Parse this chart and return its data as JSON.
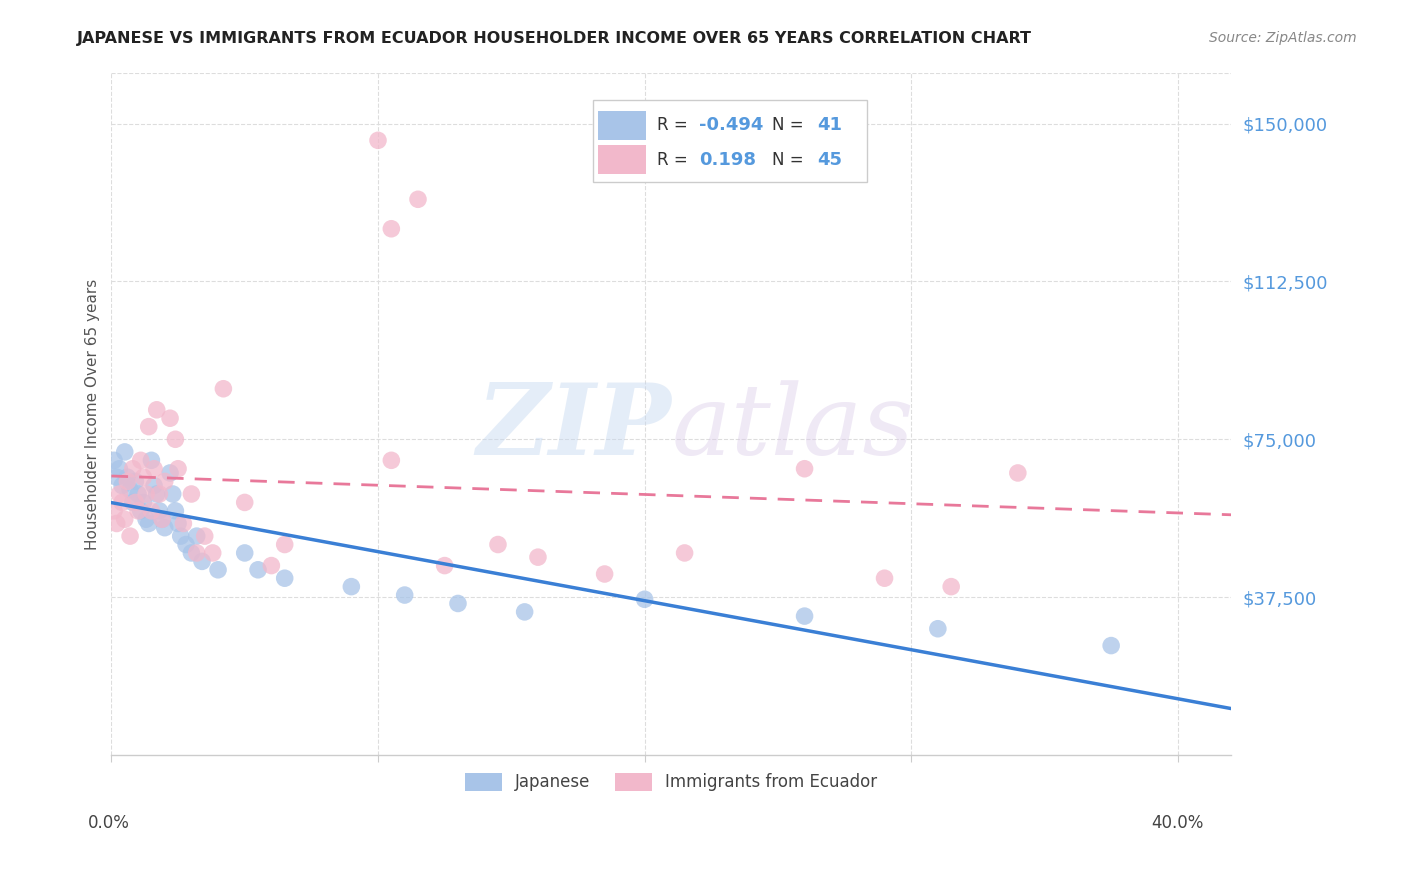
{
  "title": "JAPANESE VS IMMIGRANTS FROM ECUADOR HOUSEHOLDER INCOME OVER 65 YEARS CORRELATION CHART",
  "source": "Source: ZipAtlas.com",
  "ylabel": "Householder Income Over 65 years",
  "yticks": [
    0,
    37500,
    75000,
    112500,
    150000
  ],
  "ytick_labels": [
    "",
    "$37,500",
    "$75,000",
    "$112,500",
    "$150,000"
  ],
  "xlim": [
    0.0,
    0.42
  ],
  "ylim": [
    0,
    162000
  ],
  "watermark_zip": "ZIP",
  "watermark_atlas": "atlas",
  "legend_r_japanese": "-0.494",
  "legend_n_japanese": "41",
  "legend_r_ecuador": "0.198",
  "legend_n_ecuador": "45",
  "japanese_color": "#a8c4e8",
  "ecuador_color": "#f2b8cb",
  "japanese_line_color": "#3a7fd5",
  "ecuador_line_color": "#e8789a",
  "axis_label_color": "#5599dd",
  "japanese_points": [
    [
      0.001,
      70000
    ],
    [
      0.002,
      66000
    ],
    [
      0.003,
      68000
    ],
    [
      0.004,
      64000
    ],
    [
      0.005,
      72000
    ],
    [
      0.006,
      66000
    ],
    [
      0.007,
      63000
    ],
    [
      0.008,
      60000
    ],
    [
      0.009,
      65000
    ],
    [
      0.01,
      62000
    ],
    [
      0.011,
      58000
    ],
    [
      0.012,
      60000
    ],
    [
      0.013,
      56000
    ],
    [
      0.014,
      55000
    ],
    [
      0.015,
      70000
    ],
    [
      0.016,
      64000
    ],
    [
      0.017,
      62000
    ],
    [
      0.018,
      58000
    ],
    [
      0.019,
      56000
    ],
    [
      0.02,
      54000
    ],
    [
      0.022,
      67000
    ],
    [
      0.023,
      62000
    ],
    [
      0.024,
      58000
    ],
    [
      0.025,
      55000
    ],
    [
      0.026,
      52000
    ],
    [
      0.028,
      50000
    ],
    [
      0.03,
      48000
    ],
    [
      0.032,
      52000
    ],
    [
      0.034,
      46000
    ],
    [
      0.04,
      44000
    ],
    [
      0.05,
      48000
    ],
    [
      0.055,
      44000
    ],
    [
      0.065,
      42000
    ],
    [
      0.09,
      40000
    ],
    [
      0.11,
      38000
    ],
    [
      0.13,
      36000
    ],
    [
      0.155,
      34000
    ],
    [
      0.2,
      37000
    ],
    [
      0.26,
      33000
    ],
    [
      0.31,
      30000
    ],
    [
      0.375,
      26000
    ]
  ],
  "ecuador_points": [
    [
      0.001,
      58000
    ],
    [
      0.002,
      55000
    ],
    [
      0.003,
      62000
    ],
    [
      0.004,
      60000
    ],
    [
      0.005,
      56000
    ],
    [
      0.006,
      65000
    ],
    [
      0.007,
      52000
    ],
    [
      0.008,
      68000
    ],
    [
      0.009,
      60000
    ],
    [
      0.01,
      58000
    ],
    [
      0.011,
      70000
    ],
    [
      0.012,
      66000
    ],
    [
      0.013,
      62000
    ],
    [
      0.014,
      78000
    ],
    [
      0.015,
      58000
    ],
    [
      0.016,
      68000
    ],
    [
      0.017,
      82000
    ],
    [
      0.018,
      62000
    ],
    [
      0.019,
      56000
    ],
    [
      0.02,
      65000
    ],
    [
      0.022,
      80000
    ],
    [
      0.024,
      75000
    ],
    [
      0.025,
      68000
    ],
    [
      0.027,
      55000
    ],
    [
      0.03,
      62000
    ],
    [
      0.032,
      48000
    ],
    [
      0.035,
      52000
    ],
    [
      0.038,
      48000
    ],
    [
      0.042,
      87000
    ],
    [
      0.05,
      60000
    ],
    [
      0.06,
      45000
    ],
    [
      0.065,
      50000
    ],
    [
      0.1,
      146000
    ],
    [
      0.105,
      125000
    ],
    [
      0.115,
      132000
    ],
    [
      0.125,
      45000
    ],
    [
      0.145,
      50000
    ],
    [
      0.16,
      47000
    ],
    [
      0.185,
      43000
    ],
    [
      0.215,
      48000
    ],
    [
      0.26,
      68000
    ],
    [
      0.29,
      42000
    ],
    [
      0.315,
      40000
    ],
    [
      0.34,
      67000
    ],
    [
      0.105,
      70000
    ]
  ]
}
